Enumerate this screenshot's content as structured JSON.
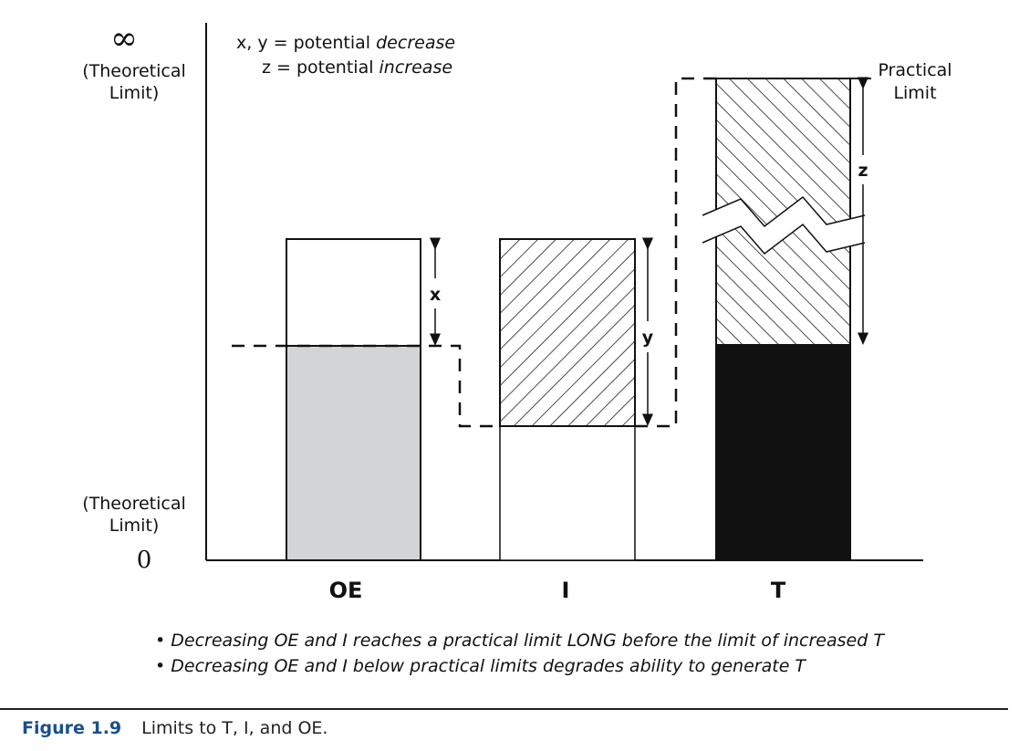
{
  "legend": {
    "line1_prefix": "x, y = potential ",
    "line1_emph": "decrease",
    "line2_prefix": "z = potential ",
    "line2_emph": "increase"
  },
  "y_axis": {
    "top_symbol": "∞",
    "top_label_line1": "(Theoretical",
    "top_label_line2": "Limit)",
    "bottom_label_line1": "(Theoretical",
    "bottom_label_line2": "Limit)",
    "bottom_value": "0"
  },
  "practical_limit": {
    "line1": "Practical",
    "line2": "Limit"
  },
  "arrows": {
    "x": "x",
    "y": "y",
    "z": "z"
  },
  "categories": [
    "OE",
    "I",
    "T"
  ],
  "notes": [
    "• Decreasing OE and I reaches a practical limit LONG before the limit of increased T",
    "• Decreasing OE and I below practical limits degrades ability to generate T"
  ],
  "caption": {
    "label": "Figure 1.9",
    "text": "Limits to T, I, and OE."
  },
  "colors": {
    "oe_fill": "#d2d4d5",
    "t_fill": "#111111"
  }
}
